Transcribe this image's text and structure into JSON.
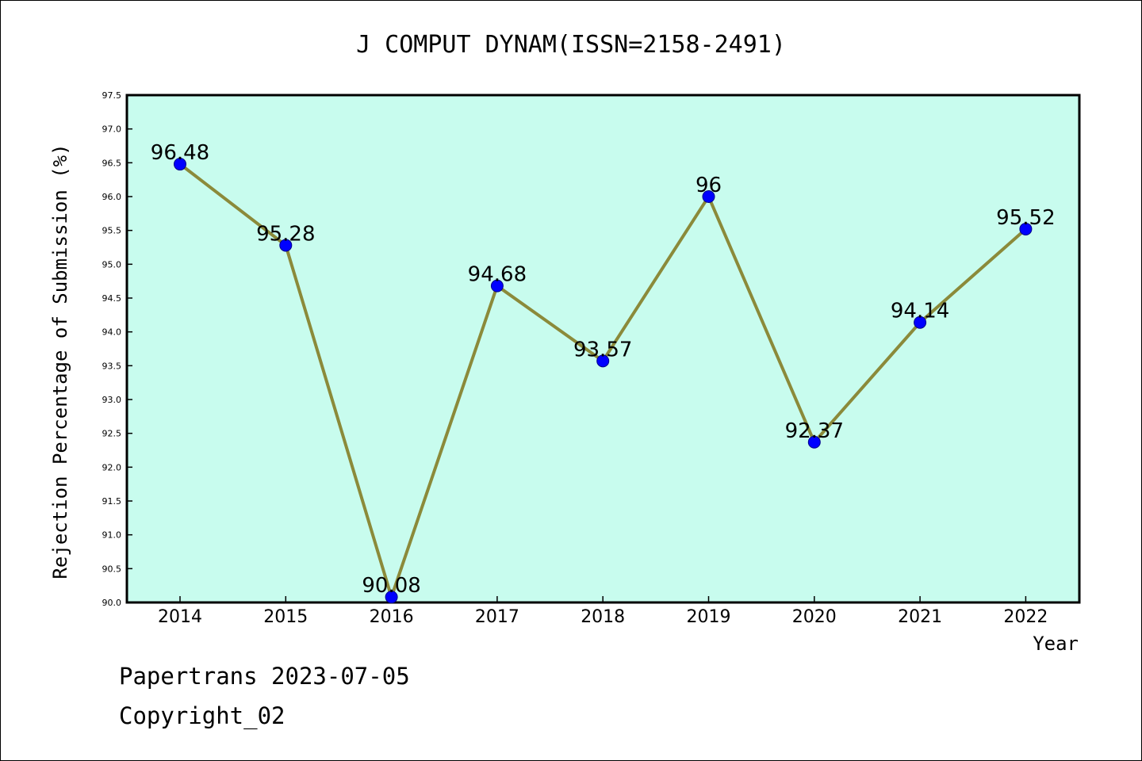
{
  "chart_data": {
    "type": "line",
    "title": "J COMPUT DYNAM(ISSN=2158-2491)",
    "xlabel": "Year",
    "ylabel": "Rejection Percentage of Submission (%)",
    "categories": [
      "2014",
      "2015",
      "2016",
      "2017",
      "2018",
      "2019",
      "2020",
      "2021",
      "2022"
    ],
    "values": [
      96.48,
      95.28,
      90.08,
      94.68,
      93.57,
      96,
      92.37,
      94.14,
      95.52
    ],
    "data_labels": [
      "96.48",
      "95.28",
      "90.08",
      "94.68",
      "93.57",
      "96",
      "92.37",
      "94.14",
      "95.52"
    ],
    "ylim": [
      90.0,
      97.5
    ],
    "yticks": [
      "90.0",
      "90.5",
      "91.0",
      "91.5",
      "92.0",
      "92.5",
      "93.0",
      "93.5",
      "94.0",
      "94.5",
      "95.0",
      "95.5",
      "96.0",
      "96.5",
      "97.0",
      "97.5"
    ],
    "grid": false,
    "colors": {
      "plot_background": "#c8fcee",
      "line": "#8b8a3a",
      "marker": "#0000ff",
      "marker_edge": "#00008b"
    }
  },
  "footer": {
    "line1": "Papertrans 2023-07-05",
    "line2": "Copyright_02"
  }
}
